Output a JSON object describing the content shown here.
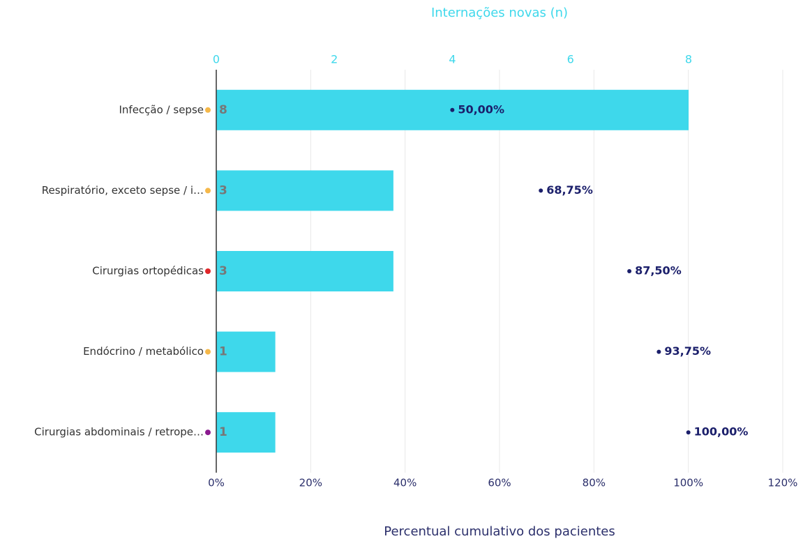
{
  "chart_data": {
    "type": "bar",
    "orientation": "horizontal",
    "xlabel": "Internações novas (n)",
    "x2label": "Percentual cumulativo dos pacientes",
    "categories": [
      "Infecção / sepse",
      "Respiratório, exceto sepse / i…",
      "Cirurgias ortopédicas",
      "Endócrino / metabólico",
      "Cirurgias abdominais / retrope…"
    ],
    "marker_colors": [
      "#f5b84a",
      "#f5b84a",
      "#e0262a",
      "#f5b84a",
      "#8b1a8f"
    ],
    "values": [
      8,
      3,
      3,
      1,
      1
    ],
    "color": "#3ed8eb",
    "xlim": [
      0,
      8
    ],
    "xticks": [
      0,
      2,
      4,
      6,
      8
    ],
    "cumulative": {
      "values": [
        50,
        68.75,
        87.5,
        93.75,
        100
      ],
      "value_labels": [
        "50,00%",
        "68,75%",
        "87,50%",
        "93,75%",
        "100,00%"
      ],
      "color": "#1b1f6b",
      "axis": "x2"
    },
    "x2lim": [
      0,
      120
    ],
    "x2ticks": [
      {
        "value": 0,
        "label": "0%"
      },
      {
        "value": 20,
        "label": "20%"
      },
      {
        "value": 40,
        "label": "40%"
      },
      {
        "value": 60,
        "label": "60%"
      },
      {
        "value": 80,
        "label": "80%"
      },
      {
        "value": 100,
        "label": "100%"
      },
      {
        "value": 120,
        "label": "120%"
      }
    ],
    "grid": true
  }
}
